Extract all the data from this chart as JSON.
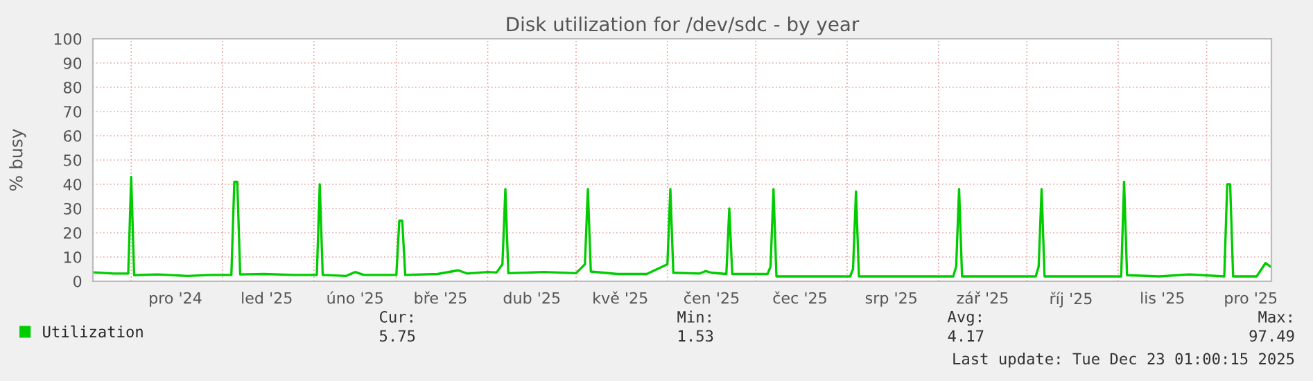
{
  "chart_data": {
    "type": "line",
    "title": "Disk utilization for /dev/sdc - by year",
    "ylabel": "% busy",
    "x": [
      "2024-11-18",
      "2024-11-25",
      "2024-11-30",
      "2024-12-01",
      "2024-12-02",
      "2024-12-10",
      "2024-12-20",
      "2024-12-28",
      "2025-01-04",
      "2025-01-05",
      "2025-01-06",
      "2025-01-07",
      "2025-01-15",
      "2025-01-25",
      "2025-02-02",
      "2025-02-03",
      "2025-02-04",
      "2025-02-12",
      "2025-02-15",
      "2025-02-18",
      "2025-03-01",
      "2025-03-02",
      "2025-03-03",
      "2025-03-04",
      "2025-03-15",
      "2025-03-22",
      "2025-03-25",
      "2025-04-01",
      "2025-04-04",
      "2025-04-06",
      "2025-04-07",
      "2025-04-08",
      "2025-04-20",
      "2025-05-01",
      "2025-05-04",
      "2025-05-05",
      "2025-05-06",
      "2025-05-15",
      "2025-05-25",
      "2025-06-01",
      "2025-06-02",
      "2025-06-03",
      "2025-06-12",
      "2025-06-14",
      "2025-06-16",
      "2025-06-21",
      "2025-06-22",
      "2025-06-23",
      "2025-07-05",
      "2025-07-06",
      "2025-07-07",
      "2025-07-08",
      "2025-08-02",
      "2025-08-03",
      "2025-08-04",
      "2025-08-05",
      "2025-09-06",
      "2025-09-07",
      "2025-09-08",
      "2025-09-09",
      "2025-10-04",
      "2025-10-05",
      "2025-10-06",
      "2025-10-07",
      "2025-11-02",
      "2025-11-03",
      "2025-11-04",
      "2025-11-15",
      "2025-11-25",
      "2025-12-07",
      "2025-12-08",
      "2025-12-09",
      "2025-12-10",
      "2025-12-18",
      "2025-12-21",
      "2025-12-23"
    ],
    "series": [
      {
        "name": "Utilization",
        "color": "#00cc00",
        "values": [
          3.7,
          3.2,
          3.2,
          43,
          2.5,
          2.8,
          2.2,
          2.6,
          2.6,
          41,
          41,
          2.8,
          3.0,
          2.6,
          2.6,
          40,
          2.6,
          2.2,
          3.8,
          2.6,
          2.6,
          25,
          25,
          2.6,
          3.0,
          4.5,
          3.2,
          3.8,
          3.6,
          7,
          38,
          3.3,
          3.8,
          3.3,
          7,
          38,
          4.0,
          3.0,
          3.0,
          7,
          38,
          3.5,
          3.2,
          4.2,
          3.5,
          3.0,
          30,
          3.0,
          3.0,
          6,
          38,
          2.0,
          2.0,
          5,
          37,
          2.0,
          2.0,
          6,
          38,
          2.0,
          2.0,
          6,
          38,
          2.0,
          2.0,
          41,
          2.5,
          2.0,
          2.8,
          2.0,
          40,
          40,
          2.0,
          2.0,
          7.5,
          5.75
        ]
      }
    ],
    "xlim": [
      "2024-11-18",
      "2025-12-23"
    ],
    "xticks": [
      {
        "value": "2024-12-01",
        "label": null
      },
      {
        "value": "2024-12-16",
        "label": "pro '24"
      },
      {
        "value": "2025-01-01",
        "label": null
      },
      {
        "value": "2025-01-16",
        "label": "led '25"
      },
      {
        "value": "2025-02-01",
        "label": null
      },
      {
        "value": "2025-02-15",
        "label": "úno '25"
      },
      {
        "value": "2025-03-01",
        "label": null
      },
      {
        "value": "2025-03-16",
        "label": "bře '25"
      },
      {
        "value": "2025-04-01",
        "label": null
      },
      {
        "value": "2025-04-16",
        "label": "dub '25"
      },
      {
        "value": "2025-05-01",
        "label": null
      },
      {
        "value": "2025-05-16",
        "label": "kvě '25"
      },
      {
        "value": "2025-06-01",
        "label": null
      },
      {
        "value": "2025-06-16",
        "label": "čen '25"
      },
      {
        "value": "2025-07-01",
        "label": null
      },
      {
        "value": "2025-07-16",
        "label": "čec '25"
      },
      {
        "value": "2025-08-01",
        "label": null
      },
      {
        "value": "2025-08-16",
        "label": "srp '25"
      },
      {
        "value": "2025-09-01",
        "label": null
      },
      {
        "value": "2025-09-16",
        "label": "zář '25"
      },
      {
        "value": "2025-10-01",
        "label": null
      },
      {
        "value": "2025-10-16",
        "label": "říj '25"
      },
      {
        "value": "2025-11-01",
        "label": null
      },
      {
        "value": "2025-11-16",
        "label": "lis '25"
      },
      {
        "value": "2025-12-01",
        "label": null
      },
      {
        "value": "2025-12-16",
        "label": "pro '25"
      }
    ],
    "ylim": [
      0,
      100
    ],
    "yticks": [
      0,
      10,
      20,
      30,
      40,
      50,
      60,
      70,
      80,
      90,
      100
    ],
    "grid": true,
    "legend": "bottom left",
    "annotations": [
      "Cur:",
      "5.75",
      "Min:",
      "1.53",
      "Avg:",
      "4.17",
      "Max:",
      "97.49",
      "Last update: Tue Dec 23 01:00:15 2025"
    ]
  }
}
